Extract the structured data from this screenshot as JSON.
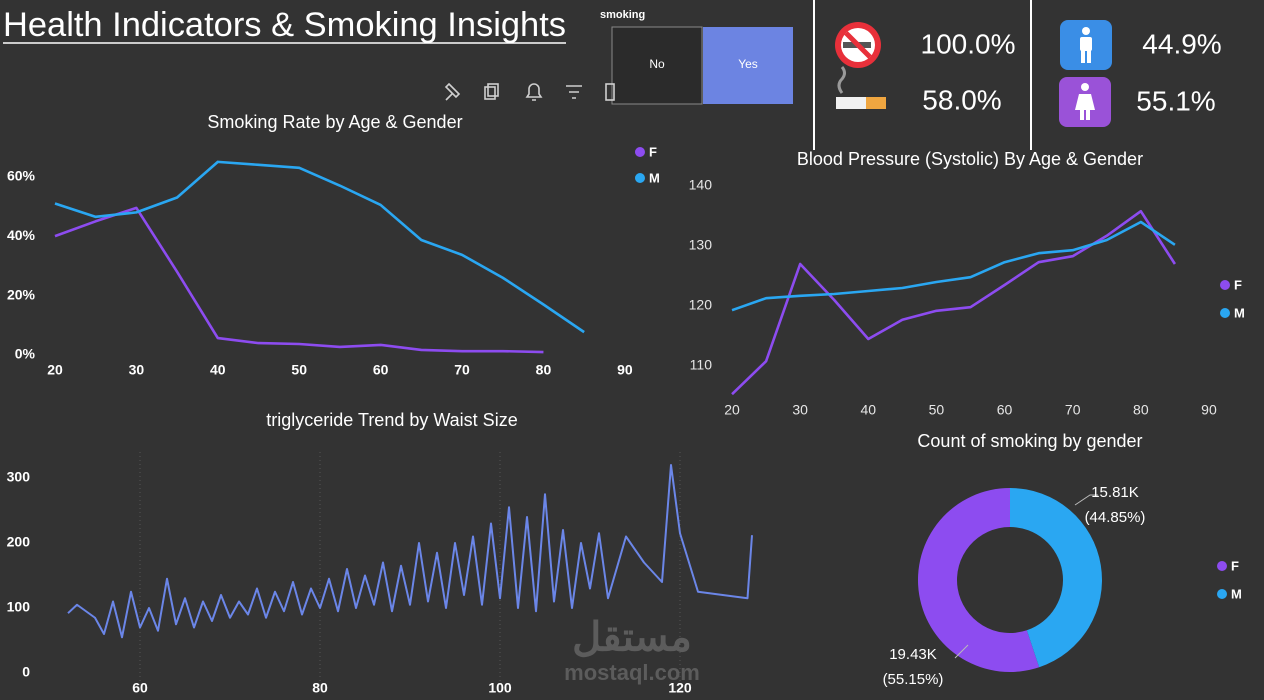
{
  "header": {
    "title": "Health Indicators & Smoking Insights"
  },
  "slicer": {
    "title": "smoking",
    "options": [
      "No",
      "Yes"
    ],
    "selected": "Yes"
  },
  "kpis": [
    "100.0%",
    "58.0%",
    "44.9%",
    "55.1%"
  ],
  "watermark": [
    "مستقل",
    "mostaql.com"
  ],
  "chart_data": [
    {
      "type": "line",
      "title": "Smoking Rate by Age & Gender",
      "x": [
        20,
        25,
        30,
        35,
        40,
        45,
        50,
        55,
        60,
        65,
        70,
        75,
        80,
        85
      ],
      "series": [
        {
          "name": "F",
          "color": "#8d4cf0",
          "values": [
            40,
            45,
            49.5,
            28,
            5.7,
            4,
            3.7,
            2.7,
            3.4,
            1.7,
            1.3,
            1.3,
            1,
            null
          ]
        },
        {
          "name": "M",
          "color": "#2aa7f2",
          "values": [
            51,
            46.5,
            48,
            53,
            65,
            64,
            63,
            57,
            50.5,
            38.7,
            33.7,
            26,
            17,
            7.7
          ]
        }
      ],
      "xlim": [
        18,
        91
      ],
      "xticks": [
        20,
        30,
        40,
        50,
        60,
        70,
        80,
        90
      ],
      "ylim": [
        0,
        70
      ],
      "yticks": [
        {
          "value": 0,
          "label": "0%"
        },
        {
          "value": 20,
          "label": "20%"
        },
        {
          "value": 40,
          "label": "40%"
        },
        {
          "value": 60,
          "label": "60%"
        }
      ],
      "legend": "right",
      "grid": false
    },
    {
      "type": "line",
      "title": "Blood Pressure (Systolic) By Age & Gender",
      "x": [
        20,
        25,
        30,
        35,
        40,
        45,
        50,
        55,
        60,
        65,
        70,
        75,
        80,
        85
      ],
      "series": [
        {
          "name": "F",
          "color": "#8d4cf0",
          "values": [
            105.3,
            110.8,
            127,
            121,
            114.5,
            117.7,
            119.2,
            119.8,
            123.5,
            127.3,
            128.3,
            131.7,
            135.8,
            127
          ]
        },
        {
          "name": "M",
          "color": "#2aa7f2",
          "values": [
            119.3,
            121.3,
            121.7,
            122,
            122.5,
            123,
            124,
            124.8,
            127.3,
            128.8,
            129.3,
            131,
            134,
            130.2
          ]
        }
      ],
      "xlim": [
        18,
        92
      ],
      "xticks": [
        20,
        30,
        40,
        50,
        60,
        70,
        80,
        90
      ],
      "ylim": [
        104,
        143
      ],
      "yticks": [
        110,
        120,
        130,
        140
      ],
      "legend": "right",
      "grid": false
    },
    {
      "type": "line",
      "title": "triglyceride Trend by Waist Size",
      "x": [
        52,
        53,
        54,
        55,
        56,
        57,
        58,
        59,
        60,
        61,
        62,
        63,
        64,
        65,
        66,
        67,
        68,
        69,
        70,
        71,
        72,
        73,
        74,
        75,
        76,
        77,
        78,
        79,
        80,
        81,
        82,
        83,
        84,
        85,
        86,
        87,
        88,
        89,
        90,
        91,
        92,
        93,
        94,
        95,
        96,
        97,
        98,
        99,
        100,
        101,
        102,
        103,
        104,
        105,
        106,
        107,
        108,
        109,
        110,
        111,
        112,
        114,
        116,
        118,
        119,
        120,
        121,
        122,
        127.5,
        128
      ],
      "values": [
        92,
        105,
        95,
        85,
        60,
        110,
        55,
        125,
        70,
        100,
        65,
        145,
        75,
        115,
        70,
        110,
        80,
        120,
        85,
        110,
        90,
        130,
        85,
        125,
        95,
        140,
        90,
        130,
        100,
        145,
        95,
        160,
        100,
        150,
        105,
        170,
        95,
        165,
        105,
        200,
        110,
        185,
        100,
        200,
        120,
        210,
        105,
        230,
        115,
        255,
        100,
        240,
        95,
        275,
        110,
        220,
        100,
        200,
        130,
        215,
        115,
        210,
        170,
        140,
        320,
        215,
        170,
        125,
        115,
        212
      ],
      "color": "#6b86e8",
      "xlim": [
        49,
        130
      ],
      "xticks": [
        60,
        80,
        100,
        120
      ],
      "ylim": [
        -20,
        340
      ],
      "yticks": [
        0,
        100,
        200,
        300
      ],
      "grid": "x"
    },
    {
      "type": "donut",
      "title": "Count of smoking by gender",
      "categories": [
        "F",
        "M"
      ],
      "values": [
        19430,
        15810
      ],
      "value_labels": [
        "19.43K",
        "15.81K"
      ],
      "percent_labels": [
        "(55.15%)",
        "(44.85%)"
      ],
      "colors": [
        "#8d4cf0",
        "#2aa7f2"
      ],
      "legend": "right"
    }
  ]
}
